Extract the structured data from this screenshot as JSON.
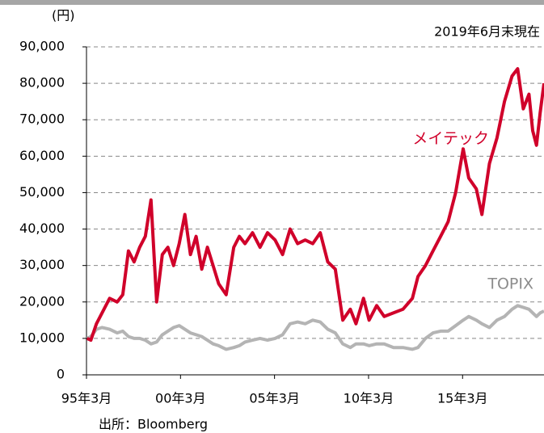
{
  "chart_data": {
    "type": "line",
    "y_unit_label": "(円)",
    "annotation": "2019年6月末現在",
    "source": "出所：Bloomberg",
    "x": [
      1995.2,
      1995.4,
      1995.7,
      1996.0,
      1996.4,
      1996.8,
      1997.1,
      1997.4,
      1997.7,
      1998.0,
      1998.3,
      1998.6,
      1998.9,
      1999.2,
      1999.5,
      1999.8,
      2000.1,
      2000.4,
      2000.7,
      2001.0,
      2001.3,
      2001.6,
      2001.9,
      2002.2,
      2002.6,
      2003.0,
      2003.3,
      2003.6,
      2004.0,
      2004.4,
      2004.8,
      2005.2,
      2005.6,
      2006.0,
      2006.4,
      2006.8,
      2007.2,
      2007.6,
      2008.0,
      2008.4,
      2008.8,
      2009.2,
      2009.5,
      2009.9,
      2010.2,
      2010.6,
      2011.0,
      2011.5,
      2012.0,
      2012.5,
      2012.8,
      2013.2,
      2013.6,
      2014.0,
      2014.4,
      2014.8,
      2015.2,
      2015.5,
      2015.9,
      2016.2,
      2016.6,
      2017.0,
      2017.4,
      2017.8,
      2018.1,
      2018.4,
      2018.7,
      2018.9,
      2019.1,
      2019.3,
      2019.5
    ],
    "series": [
      {
        "name": "メイテック",
        "color": "#d0002a",
        "values": [
          10000,
          9500,
          14000,
          17000,
          21000,
          20000,
          22000,
          34000,
          31000,
          35000,
          38000,
          48000,
          20000,
          33000,
          35000,
          30000,
          36000,
          44000,
          33000,
          38000,
          29000,
          35000,
          30000,
          25000,
          22000,
          35000,
          38000,
          36000,
          39000,
          35000,
          39000,
          37000,
          33000,
          40000,
          36000,
          37000,
          36000,
          39000,
          31000,
          29000,
          15000,
          18000,
          14000,
          21000,
          15000,
          19000,
          16000,
          17000,
          18000,
          21000,
          27000,
          30000,
          34000,
          38000,
          42000,
          50000,
          62000,
          54000,
          51000,
          44000,
          58000,
          65000,
          75000,
          82000,
          84000,
          73000,
          77000,
          67000,
          63000,
          72000,
          80000
        ]
      },
      {
        "name": "TOPIX",
        "color": "#b4b4b4",
        "values": [
          10000,
          10500,
          12500,
          13000,
          12500,
          11500,
          12000,
          10500,
          10000,
          10000,
          9500,
          8500,
          9000,
          11000,
          12000,
          13000,
          13500,
          12500,
          11500,
          11000,
          10500,
          9500,
          8500,
          8000,
          7000,
          7500,
          8000,
          9000,
          9500,
          10000,
          9500,
          10000,
          11000,
          14000,
          14500,
          14000,
          15000,
          14500,
          12500,
          11500,
          8500,
          7500,
          8500,
          8500,
          8000,
          8500,
          8500,
          7500,
          7500,
          7000,
          7500,
          10000,
          11500,
          12000,
          12000,
          13500,
          15000,
          16000,
          15000,
          14000,
          13000,
          15000,
          16000,
          18000,
          19000,
          18500,
          18000,
          17000,
          16000,
          17000,
          17500
        ]
      }
    ],
    "xlim": [
      1995.17,
      2019.5
    ],
    "xticks": [
      {
        "value": 1995.17,
        "label": "95年3月"
      },
      {
        "value": 2000.17,
        "label": "00年3月"
      },
      {
        "value": 2005.17,
        "label": "05年3月"
      },
      {
        "value": 2010.17,
        "label": "10年3月"
      },
      {
        "value": 2015.17,
        "label": "15年3月"
      }
    ],
    "ylim": [
      0,
      90000
    ],
    "yticks": [
      0,
      {
        "value": 10000,
        "label": "10,000"
      },
      {
        "value": 20000,
        "label": "20,000"
      },
      {
        "value": 30000,
        "label": "30,000"
      },
      {
        "value": 40000,
        "label": "40,000"
      },
      {
        "value": 50000,
        "label": "50,000"
      },
      {
        "value": 60000,
        "label": "60,000"
      },
      {
        "value": 70000,
        "label": "70,000"
      },
      {
        "value": 80000,
        "label": "80,000"
      },
      {
        "value": 90000,
        "label": "90,000"
      }
    ],
    "grid": true
  }
}
